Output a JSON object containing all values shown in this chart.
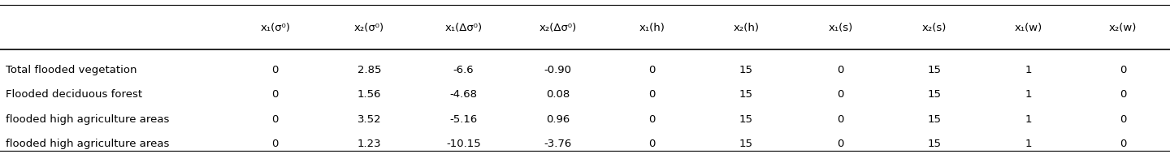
{
  "col_headers": [
    "x₁(σ⁰)",
    "x₂(σ⁰)",
    "x₁(Δσ⁰)",
    "x₂(Δσ⁰)",
    "x₁(h)",
    "x₂(h)",
    "x₁(s)",
    "x₂(s)",
    "x₁(w)",
    "x₂(w)"
  ],
  "row_labels": [
    "Total flooded vegetation",
    "Flooded deciduous forest",
    "flooded high agriculture areas",
    "flooded high agriculture areas"
  ],
  "table_data": [
    [
      "0",
      "2.85",
      "-6.6",
      "-0.90",
      "0",
      "15",
      "0",
      "15",
      "1",
      "0"
    ],
    [
      "0",
      "1.56",
      "-4.68",
      "0.08",
      "0",
      "15",
      "0",
      "15",
      "1",
      "0"
    ],
    [
      "0",
      "3.52",
      "-5.16",
      "0.96",
      "0",
      "15",
      "0",
      "15",
      "1",
      "0"
    ],
    [
      "0",
      "1.23",
      "-10.15",
      "-3.76",
      "0",
      "15",
      "0",
      "15",
      "1",
      "0"
    ]
  ],
  "bg_color": "#ffffff",
  "header_line_color": "#000000",
  "bottom_line_color": "#000000",
  "text_color": "#000000",
  "fontsize": 9.5,
  "header_fontsize": 9.5
}
